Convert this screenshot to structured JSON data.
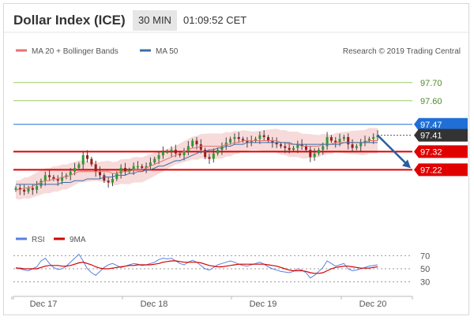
{
  "header": {
    "title": "Dollar Index (ICE)",
    "interval": "30 MIN",
    "time": "01:09:52 CET"
  },
  "legend": {
    "ma20_label": "MA 20 + Bollinger Bands",
    "ma50_label": "MA 50",
    "credit": "Research © 2019 Trading Central",
    "rsi_label": "RSI",
    "ma9_label": "9MA"
  },
  "colors": {
    "candle": "#2f9a2f",
    "ma20": "#e57373",
    "ma50": "#3a6fa8",
    "band": "#f6d3d3",
    "support": "#e00000",
    "resistance_blue": "#1f6fd6",
    "tag_dark": "#333333",
    "arrow": "#2a5fa0",
    "rsi": "#5b7fe0",
    "rsi_ma": "#d40000",
    "grid_green": "#9ccc65"
  },
  "chart_data": [
    {
      "type": "candlestick",
      "title": "",
      "ylim": [
        97.07,
        97.79
      ],
      "y_ticks": [
        "97.70",
        "97.60"
      ],
      "x_ticks": [
        "Dec 17",
        "Dec 18",
        "Dec 19",
        "Dec 20"
      ],
      "levels": [
        {
          "label": "97.70",
          "value": 97.7,
          "style": "green-line"
        },
        {
          "label": "97.60",
          "value": 97.6,
          "style": "green-line"
        },
        {
          "label": "97.47",
          "value": 97.47,
          "style": "blue-line"
        },
        {
          "label": "97.41",
          "value": 97.41,
          "style": "current-price"
        },
        {
          "label": "97.32",
          "value": 97.32,
          "style": "red-line"
        },
        {
          "label": "97.22",
          "value": 97.22,
          "style": "red-line"
        }
      ],
      "close": [
        97.12,
        97.11,
        97.1,
        97.12,
        97.11,
        97.13,
        97.16,
        97.19,
        97.18,
        97.17,
        97.16,
        97.18,
        97.19,
        97.21,
        97.23,
        97.25,
        97.3,
        97.28,
        97.25,
        97.21,
        97.19,
        97.16,
        97.15,
        97.17,
        97.2,
        97.23,
        97.21,
        97.22,
        97.24,
        97.24,
        97.23,
        97.24,
        97.26,
        97.28,
        97.3,
        97.32,
        97.32,
        97.33,
        97.31,
        97.3,
        97.32,
        97.35,
        97.38,
        97.36,
        97.33,
        97.29,
        97.28,
        97.31,
        97.33,
        97.35,
        97.37,
        97.39,
        97.4,
        97.39,
        97.38,
        97.37,
        97.38,
        97.39,
        97.41,
        97.4,
        97.38,
        97.37,
        97.36,
        97.35,
        97.34,
        97.33,
        97.34,
        97.36,
        97.35,
        97.33,
        97.29,
        97.31,
        97.33,
        97.35,
        97.4,
        97.38,
        97.37,
        97.39,
        97.4,
        97.36,
        97.34,
        97.35,
        97.37,
        97.38,
        97.39,
        97.4,
        97.41
      ],
      "ma20": [
        97.11,
        97.11,
        97.12,
        97.12,
        97.13,
        97.14,
        97.15,
        97.16,
        97.16,
        97.17,
        97.17,
        97.18,
        97.18,
        97.19,
        97.2,
        97.21,
        97.21,
        97.21,
        97.21,
        97.21,
        97.21,
        97.21,
        97.21,
        97.2,
        97.2,
        97.21,
        97.21,
        97.21,
        97.22,
        97.22,
        97.22,
        97.23,
        97.24,
        97.25,
        97.26,
        97.27,
        97.28,
        97.29,
        97.3,
        97.31,
        97.32,
        97.33,
        97.34,
        97.34,
        97.35,
        97.35,
        97.35,
        97.35,
        97.35,
        97.35,
        97.36,
        97.36,
        97.37,
        97.37,
        97.38,
        97.38,
        97.38,
        97.38,
        97.38,
        97.38,
        97.38,
        97.38,
        97.38,
        97.37,
        97.37,
        97.36,
        97.36,
        97.36,
        97.35,
        97.35,
        97.35,
        97.35,
        97.35,
        97.36,
        97.36,
        97.36,
        97.37,
        97.37,
        97.37,
        97.37,
        97.37,
        97.37,
        97.37,
        97.37,
        97.38,
        97.38,
        97.38
      ],
      "ma50": [
        97.14,
        97.14,
        97.14,
        97.14,
        97.14,
        97.14,
        97.14,
        97.14,
        97.14,
        97.14,
        97.14,
        97.15,
        97.15,
        97.15,
        97.16,
        97.16,
        97.16,
        97.17,
        97.17,
        97.17,
        97.17,
        97.18,
        97.18,
        97.18,
        97.19,
        97.19,
        97.19,
        97.2,
        97.2,
        97.21,
        97.21,
        97.22,
        97.22,
        97.23,
        97.24,
        97.24,
        97.25,
        97.26,
        97.27,
        97.27,
        97.28,
        97.29,
        97.3,
        97.31,
        97.32,
        97.32,
        97.33,
        97.33,
        97.34,
        97.34,
        97.35,
        97.35,
        97.36,
        97.36,
        97.36,
        97.37,
        97.37,
        97.37,
        97.37,
        97.37,
        97.37,
        97.37,
        97.37,
        97.37,
        97.37,
        97.37,
        97.36,
        97.36,
        97.36,
        97.36,
        97.36,
        97.36,
        97.36,
        97.36,
        97.36,
        97.36,
        97.36,
        97.36,
        97.37,
        97.37,
        97.37,
        97.37,
        97.37,
        97.37,
        97.37,
        97.37,
        97.37
      ]
    },
    {
      "type": "line",
      "title": "",
      "ylim": [
        20,
        80
      ],
      "y_ticks": [
        "70",
        "50",
        "30"
      ],
      "series": [
        {
          "name": "RSI",
          "values": [
            52,
            50,
            48,
            47,
            50,
            53,
            62,
            66,
            58,
            52,
            49,
            50,
            54,
            60,
            66,
            72,
            62,
            50,
            44,
            40,
            46,
            52,
            56,
            58,
            55,
            52,
            54,
            56,
            58,
            57,
            55,
            56,
            58,
            60,
            64,
            66,
            65,
            66,
            62,
            58,
            56,
            60,
            63,
            60,
            55,
            50,
            48,
            52,
            56,
            58,
            60,
            62,
            60,
            57,
            55,
            54,
            56,
            58,
            60,
            57,
            53,
            50,
            48,
            46,
            45,
            44,
            46,
            50,
            48,
            44,
            36,
            40,
            46,
            52,
            62,
            58,
            54,
            56,
            58,
            50,
            47,
            48,
            50,
            52,
            54,
            55,
            56
          ]
        },
        {
          "name": "9MA",
          "values": [
            51,
            51,
            50,
            50,
            50,
            50,
            52,
            54,
            55,
            55,
            55,
            54,
            54,
            55,
            57,
            59,
            60,
            58,
            56,
            53,
            51,
            50,
            50,
            51,
            52,
            53,
            54,
            55,
            55,
            56,
            56,
            56,
            56,
            57,
            58,
            60,
            61,
            62,
            62,
            61,
            60,
            60,
            60,
            60,
            59,
            57,
            55,
            54,
            53,
            53,
            54,
            55,
            56,
            57,
            57,
            57,
            57,
            57,
            57,
            57,
            56,
            55,
            54,
            52,
            50,
            48,
            47,
            47,
            47,
            46,
            44,
            43,
            43,
            44,
            47,
            50,
            52,
            53,
            54,
            54,
            53,
            52,
            51,
            51,
            51,
            52,
            53
          ]
        }
      ]
    }
  ]
}
